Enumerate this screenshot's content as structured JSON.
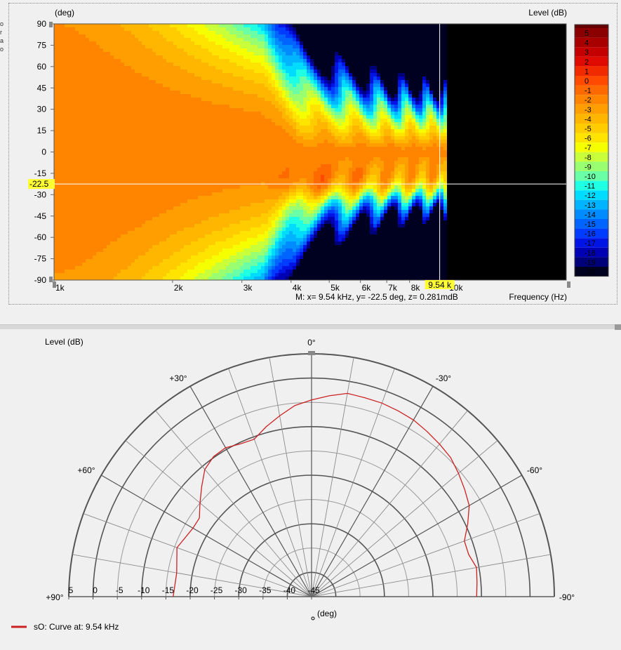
{
  "left_edge_glyphs": [
    "o",
    "r",
    "a",
    "o"
  ],
  "colors": {
    "background": "#f0f0f0",
    "crosshair": "#ffffff",
    "marker_highlight": "#ffff33",
    "curve": "#cc2222",
    "plot_outside": "#000000"
  },
  "chart_data": [
    {
      "type": "heatmap",
      "title": "",
      "ylabel": "(deg)",
      "xlabel": "Frequency  (Hz)",
      "colorbar_label": "Level  (dB)",
      "x_scale": "log",
      "xlim": [
        1000,
        20000
      ],
      "ylim": [
        -90,
        90
      ],
      "x_ticks": [
        {
          "value": 1000,
          "label": "1k"
        },
        {
          "value": 2000,
          "label": "2k"
        },
        {
          "value": 3000,
          "label": "3k"
        },
        {
          "value": 4000,
          "label": "4k"
        },
        {
          "value": 5000,
          "label": "5k"
        },
        {
          "value": 6000,
          "label": "6k"
        },
        {
          "value": 7000,
          "label": "7k"
        },
        {
          "value": 8000,
          "label": "8k"
        },
        {
          "value": 10000,
          "label": "10k"
        }
      ],
      "y_ticks": [
        90,
        75,
        60,
        45,
        30,
        15,
        0,
        -15,
        -30,
        -45,
        -60,
        -75,
        -90
      ],
      "data_end_frequency": 10000,
      "colorbar": {
        "levels": [
          5,
          4,
          3,
          2,
          1,
          0,
          -1,
          -2,
          -3,
          -4,
          -5,
          -6,
          -7,
          -8,
          -9,
          -10,
          -11,
          -12,
          -13,
          -14,
          -15,
          -16,
          -17,
          -18,
          -19,
          -20
        ],
        "colors": [
          "#8b0000",
          "#a80000",
          "#c40000",
          "#df0a00",
          "#f22a00",
          "#ff4a00",
          "#ff6a00",
          "#ff8400",
          "#ff9e00",
          "#ffb600",
          "#ffcc00",
          "#ffe400",
          "#f6ff00",
          "#c8ff3a",
          "#9aff70",
          "#6affa6",
          "#1effe4",
          "#00dcff",
          "#00b4ff",
          "#008cff",
          "#0064ff",
          "#003cff",
          "#0014e6",
          "#0000b4",
          "#00007a",
          "#000020"
        ]
      },
      "marker": {
        "x": 9540,
        "y": -22.5,
        "z": 0.281,
        "x_label": "9.54 k",
        "y_label": "-22.5",
        "readout": "M:  x= 9.54 kHz,  y= -22.5 deg, z= 0.281mdB"
      }
    },
    {
      "type": "polar",
      "title": "",
      "ylabel": "Level  (dB)",
      "angle_unit_label": "(deg)",
      "angle_range": [
        -90,
        90
      ],
      "radial_range": [
        -45,
        5
      ],
      "radial_ticks": [
        5,
        0,
        -5,
        -10,
        -15,
        -20,
        -25,
        -30,
        -35,
        -40,
        -45
      ],
      "radial_tick_labels": [
        "5",
        "0",
        "-5",
        "-10",
        "-15",
        "-20",
        "-25",
        "-30",
        "-35",
        "-40",
        "-45"
      ],
      "angle_labels": [
        {
          "angle": 0,
          "label": "0°"
        },
        {
          "angle": 30,
          "label": "+30°"
        },
        {
          "angle": -30,
          "label": "-30°"
        },
        {
          "angle": 60,
          "label": "+60°"
        },
        {
          "angle": -60,
          "label": "-60°"
        },
        {
          "angle": 90,
          "label": "+90°"
        },
        {
          "angle": -90,
          "label": "-90°"
        }
      ],
      "legend": "bottom-left",
      "series": [
        {
          "name": "sO: Curve at: 9.54 kHz",
          "color": "#cc2222",
          "points": [
            {
              "angle": 90,
              "level": -16.5
            },
            {
              "angle": 80,
              "level": -16.8
            },
            {
              "angle": 70,
              "level": -15.5
            },
            {
              "angle": 60,
              "level": -16.8
            },
            {
              "angle": 55,
              "level": -16.8
            },
            {
              "angle": 50,
              "level": -15.0
            },
            {
              "angle": 45,
              "level": -13.0
            },
            {
              "angle": 40,
              "level": -10.8
            },
            {
              "angle": 35,
              "level": -9.8
            },
            {
              "angle": 30,
              "level": -9.6
            },
            {
              "angle": 25,
              "level": -10.3
            },
            {
              "angle": 20,
              "level": -10.5
            },
            {
              "angle": 15,
              "level": -8.8
            },
            {
              "angle": 10,
              "level": -7.2
            },
            {
              "angle": 5,
              "level": -5.5
            },
            {
              "angle": 0,
              "level": -4.5
            },
            {
              "angle": -5,
              "level": -3.5
            },
            {
              "angle": -10,
              "level": -2.5
            },
            {
              "angle": -15,
              "level": -2.6
            },
            {
              "angle": -20,
              "level": -2.6
            },
            {
              "angle": -25,
              "level": -2.8
            },
            {
              "angle": -30,
              "level": -3.0
            },
            {
              "angle": -35,
              "level": -3.5
            },
            {
              "angle": -40,
              "level": -4.0
            },
            {
              "angle": -45,
              "level": -4.5
            },
            {
              "angle": -50,
              "level": -5.5
            },
            {
              "angle": -55,
              "level": -6.5
            },
            {
              "angle": -60,
              "level": -7.5
            },
            {
              "angle": -65,
              "level": -9.5
            },
            {
              "angle": -70,
              "level": -11.5
            },
            {
              "angle": -75,
              "level": -11.5
            },
            {
              "angle": -80,
              "level": -10.5
            },
            {
              "angle": -85,
              "level": -10.8
            },
            {
              "angle": -90,
              "level": -11.0
            }
          ]
        }
      ]
    }
  ]
}
